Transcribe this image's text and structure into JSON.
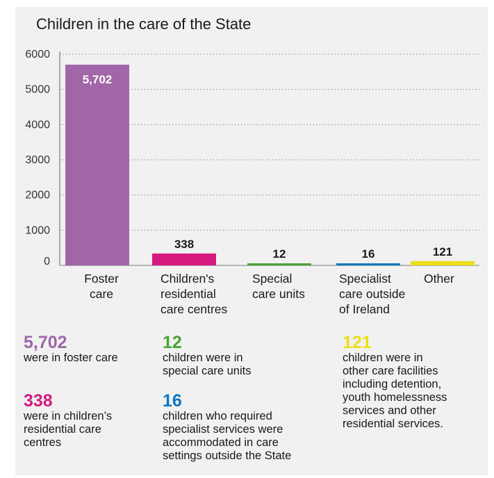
{
  "chart_data": {
    "type": "bar",
    "title": "Children in the care of the State",
    "xlabel": "",
    "ylabel": "",
    "ylim": [
      0,
      6000
    ],
    "yticks": [
      0,
      1000,
      2000,
      3000,
      4000,
      5000,
      6000
    ],
    "grid": true,
    "categories": [
      [
        "Foster",
        "care"
      ],
      [
        "Children's",
        "residential",
        "care centres"
      ],
      [
        "Special",
        "care units"
      ],
      [
        "Specialist",
        "care outside",
        "of Ireland"
      ],
      [
        "Other"
      ]
    ],
    "values": [
      5702,
      338,
      12,
      16,
      121
    ],
    "value_labels": [
      "5,702",
      "338",
      "12",
      "16",
      "121"
    ],
    "colors": [
      "#a066a8",
      "#d6197e",
      "#4aa335",
      "#0a78bf",
      "#ecdf18"
    ]
  },
  "stats": [
    {
      "number": "5,702",
      "color": "#a066a8",
      "text": "were in foster care"
    },
    {
      "number": "338",
      "color": "#d6197e",
      "text": "were in children’s\nresidential care\ncentres"
    },
    {
      "number": "12",
      "color": "#4aa335",
      "text": "children were in\nspecial care units"
    },
    {
      "number": "16",
      "color": "#0a78bf",
      "text": "children who required\nspecialist services were\naccommodated in care\nsettings outside the State"
    },
    {
      "number": "121",
      "color": "#ecdf18",
      "text": "children were in\nother care facilities\nincluding detention,\nyouth homelessness\nservices and other\nresidential services."
    }
  ]
}
